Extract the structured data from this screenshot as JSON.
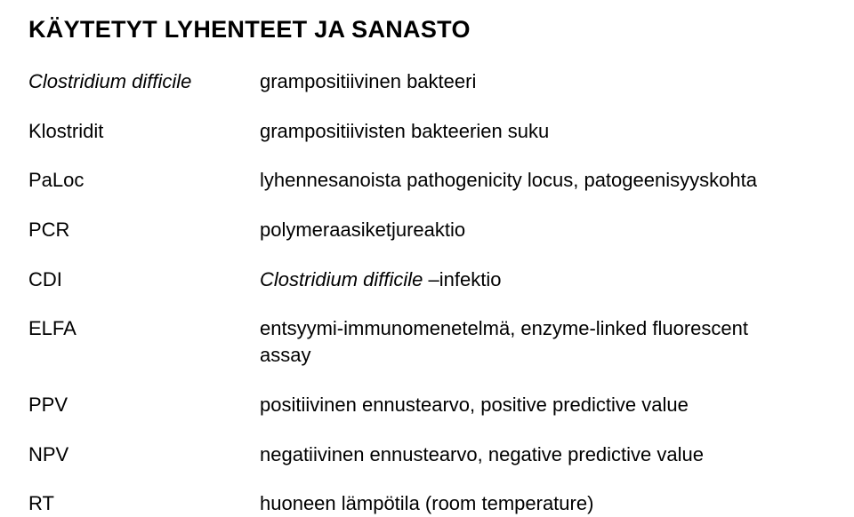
{
  "title": "KÄYTETYT LYHENTEET JA SANASTO",
  "entries": [
    {
      "term_html": "<span class=\"italic\">Clostridium difficile</span>",
      "def_html": "grampositiivinen bakteeri"
    },
    {
      "term_html": "Klostridit",
      "def_html": "grampositiivisten bakteerien suku"
    },
    {
      "term_html": "PaLoc",
      "def_html": "lyhennesanoista pathogenicity locus, patogeenisyyskohta"
    },
    {
      "term_html": "PCR",
      "def_html": "polymeraasiketjureaktio"
    },
    {
      "term_html": "CDI",
      "def_html": "<span class=\"italic\">Clostridium difficile</span> –infektio"
    },
    {
      "term_html": "ELFA",
      "def_html": "entsyymi-immunomenetelmä, enzyme-linked fluorescent assay"
    },
    {
      "term_html": "PPV",
      "def_html": "positiivinen ennustearvo, positive predictive value"
    },
    {
      "term_html": "NPV",
      "def_html": "negatiivinen ennustearvo, negative predictive value"
    },
    {
      "term_html": "RT",
      "def_html": "huoneen lämpötila (room temperature)"
    }
  ],
  "styles": {
    "background_color": "#ffffff",
    "text_color": "#000000",
    "title_fontsize": 27,
    "title_fontweight": "bold",
    "body_fontsize": 22,
    "row_spacing": 26,
    "term_column_width": 260,
    "font_family": "Arial, Helvetica, sans-serif"
  }
}
